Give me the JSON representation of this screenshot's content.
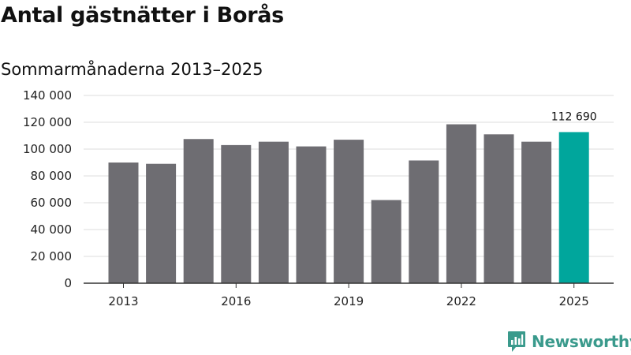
{
  "title": "Antal gästnätter i Borås",
  "subtitle": "Sommarmånaderna 2013–2025",
  "brand": {
    "name": "Newsworthy",
    "icon": "newsworthy-logo-icon",
    "color": "#3a9a8c"
  },
  "colors": {
    "bar": "#6e6d72",
    "highlight": "#00a69c",
    "grid": "#dddddd",
    "axis": "#333333"
  },
  "chart_data": {
    "type": "bar",
    "title": "Antal gästnätter i Borås",
    "subtitle": "Sommarmånaderna 2013–2025",
    "categories": [
      "2013",
      "2014",
      "2015",
      "2016",
      "2017",
      "2018",
      "2019",
      "2020",
      "2021",
      "2022",
      "2023",
      "2024",
      "2025"
    ],
    "values": [
      90000,
      89000,
      107500,
      103000,
      105500,
      102000,
      107000,
      62000,
      91500,
      118500,
      111000,
      105500,
      112690
    ],
    "highlight_index": 12,
    "data_labels": [
      {
        "index": 12,
        "text": "112 690"
      }
    ],
    "ylim": [
      0,
      140000
    ],
    "yticks": [
      0,
      20000,
      40000,
      60000,
      80000,
      100000,
      120000,
      140000
    ],
    "ytick_labels": [
      "0",
      "20 000",
      "40 000",
      "60 000",
      "80 000",
      "100 000",
      "120 000",
      "140 000"
    ],
    "xtick_labels": [
      "2013",
      "2016",
      "2019",
      "2022",
      "2025"
    ],
    "xtick_indices": [
      0,
      3,
      6,
      9,
      12
    ],
    "grid": true,
    "legend": "none"
  }
}
